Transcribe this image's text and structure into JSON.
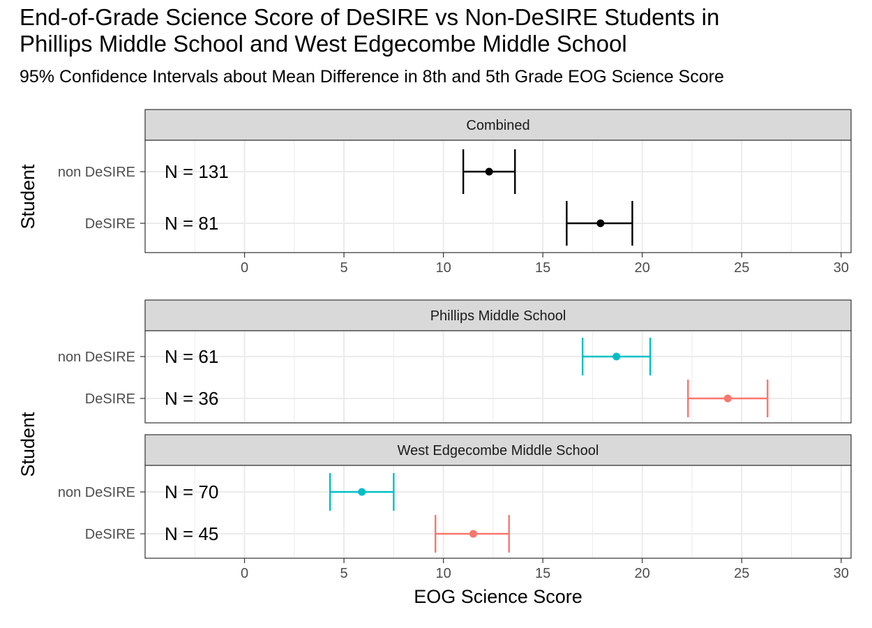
{
  "title_lines": [
    "End-of-Grade Science Score of DeSIRE vs Non-DeSIRE Students in",
    "Phillips Middle School and West Edgecombe Middle School"
  ],
  "subtitle": "95% Confidence Intervals about Mean Difference in 8th and 5th Grade EOG Science Score",
  "colors": {
    "combined": "#000000",
    "desire": "#F8766D",
    "non_desire": "#00BFC4",
    "strip": "#D9D9D9",
    "grid": "#EBEBEB"
  },
  "chart_data": [
    {
      "type": "errorbar",
      "panel": "Combined",
      "ylabel": "Student",
      "xlabel": "",
      "xlim": [
        -5,
        30.5
      ],
      "xticks": [
        0,
        5,
        10,
        15,
        20,
        25,
        30
      ],
      "xtick_labels": [
        "0",
        "5",
        "10",
        "15",
        "20",
        "25",
        "30"
      ],
      "grid": true,
      "categories": [
        "non DeSIRE",
        "DeSIRE"
      ],
      "rows": [
        {
          "group": "non DeSIRE",
          "mean": 12.3,
          "lower": 11.0,
          "upper": 13.6,
          "n_label": "N = 131",
          "color_key": "combined"
        },
        {
          "group": "DeSIRE",
          "mean": 17.9,
          "lower": 16.2,
          "upper": 19.5,
          "n_label": "N = 81",
          "color_key": "combined"
        }
      ]
    },
    {
      "type": "errorbar",
      "panels": [
        {
          "panel": "Phillips Middle School",
          "rows": [
            {
              "group": "non DeSIRE",
              "mean": 18.7,
              "lower": 17.0,
              "upper": 20.4,
              "n_label": "N = 61",
              "color_key": "non_desire"
            },
            {
              "group": "DeSIRE",
              "mean": 24.3,
              "lower": 22.3,
              "upper": 26.3,
              "n_label": "N = 36",
              "color_key": "desire"
            }
          ]
        },
        {
          "panel": "West Edgecombe Middle School",
          "rows": [
            {
              "group": "non DeSIRE",
              "mean": 5.9,
              "lower": 4.3,
              "upper": 7.5,
              "n_label": "N = 70",
              "color_key": "non_desire"
            },
            {
              "group": "DeSIRE",
              "mean": 11.5,
              "lower": 9.6,
              "upper": 13.3,
              "n_label": "N = 45",
              "color_key": "desire"
            }
          ]
        }
      ],
      "ylabel": "Student",
      "xlabel": "EOG Science Score",
      "xlim": [
        -5,
        30.5
      ],
      "xticks": [
        0,
        5,
        10,
        15,
        20,
        25,
        30
      ],
      "xtick_labels": [
        "0",
        "5",
        "10",
        "15",
        "20",
        "25",
        "30"
      ],
      "grid": true,
      "categories": [
        "non DeSIRE",
        "DeSIRE"
      ]
    }
  ]
}
